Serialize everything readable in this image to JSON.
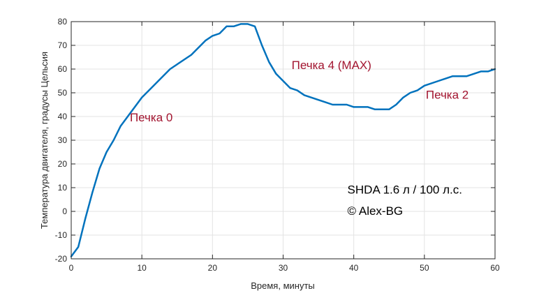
{
  "chart_data": {
    "type": "line",
    "xlabel": "Время, минуты",
    "ylabel": "Температура двигателя, градусы Цельсия",
    "xlim": [
      0,
      60
    ],
    "ylim": [
      -20,
      80
    ],
    "xticks": [
      0,
      10,
      20,
      30,
      40,
      50,
      60
    ],
    "yticks": [
      -20,
      -10,
      0,
      10,
      20,
      30,
      40,
      50,
      60,
      70,
      80
    ],
    "grid": true,
    "series": [
      {
        "color": "#0072BD",
        "x": [
          0,
          1,
          2,
          3,
          4,
          5,
          6,
          7,
          8,
          9,
          10,
          12,
          14,
          17,
          19,
          20,
          21,
          22,
          23,
          24,
          25,
          26,
          27,
          28,
          29,
          30,
          31,
          32,
          33,
          34,
          35,
          36,
          37,
          38,
          39,
          40,
          41,
          42,
          43,
          44,
          45,
          46,
          47,
          48,
          49,
          50,
          52,
          54,
          56,
          58,
          59,
          60
        ],
        "y": [
          -19,
          -15,
          -3,
          8,
          18,
          25,
          30,
          36,
          40,
          44,
          48,
          54,
          60,
          66,
          72,
          74,
          75,
          78,
          78,
          79,
          79,
          78,
          70,
          63,
          58,
          55,
          52,
          51,
          49,
          48,
          47,
          46,
          45,
          45,
          45,
          44,
          44,
          44,
          43,
          43,
          43,
          45,
          48,
          50,
          51,
          53,
          55,
          57,
          57,
          59,
          59,
          60
        ]
      }
    ],
    "annotations": [
      {
        "text": "Печка 0",
        "x": 8.3,
        "y": 38,
        "color": "#A2142F"
      },
      {
        "text": "Печка 4 (MAX)",
        "x": 31.2,
        "y": 60,
        "color": "#A2142F"
      },
      {
        "text": "Печка 2",
        "x": 50.2,
        "y": 47.5,
        "color": "#A2142F"
      },
      {
        "text": "SHDA 1.6 л / 100 л.с.",
        "x": 39.1,
        "y": 7.5,
        "color": "#000000"
      },
      {
        "text": "© Alex-BG",
        "x": 39.1,
        "y": -1.5,
        "color": "#000000"
      }
    ]
  }
}
